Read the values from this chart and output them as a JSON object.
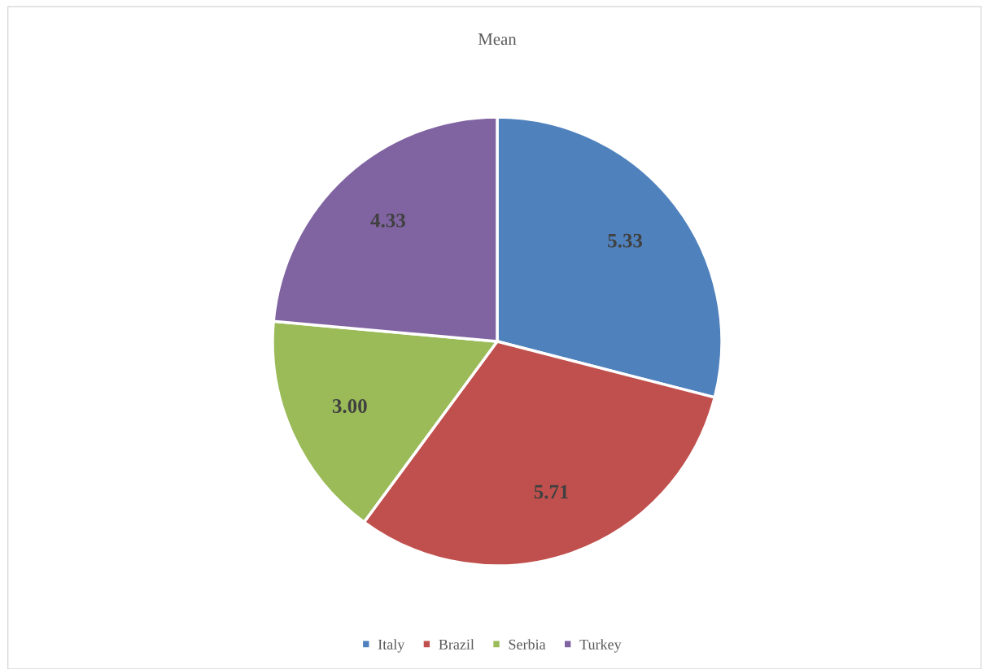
{
  "chart_data": {
    "type": "pie",
    "title": "Mean",
    "categories": [
      "Italy",
      "Brazil",
      "Serbia",
      "Turkey"
    ],
    "values": [
      5.33,
      5.71,
      3.0,
      4.33
    ],
    "colors": [
      "#4f81bd",
      "#c0504d",
      "#9bbb59",
      "#8064a2"
    ],
    "value_labels": [
      "5.33",
      "5.71",
      "3.00",
      "4.33"
    ],
    "legend": "bottom"
  }
}
